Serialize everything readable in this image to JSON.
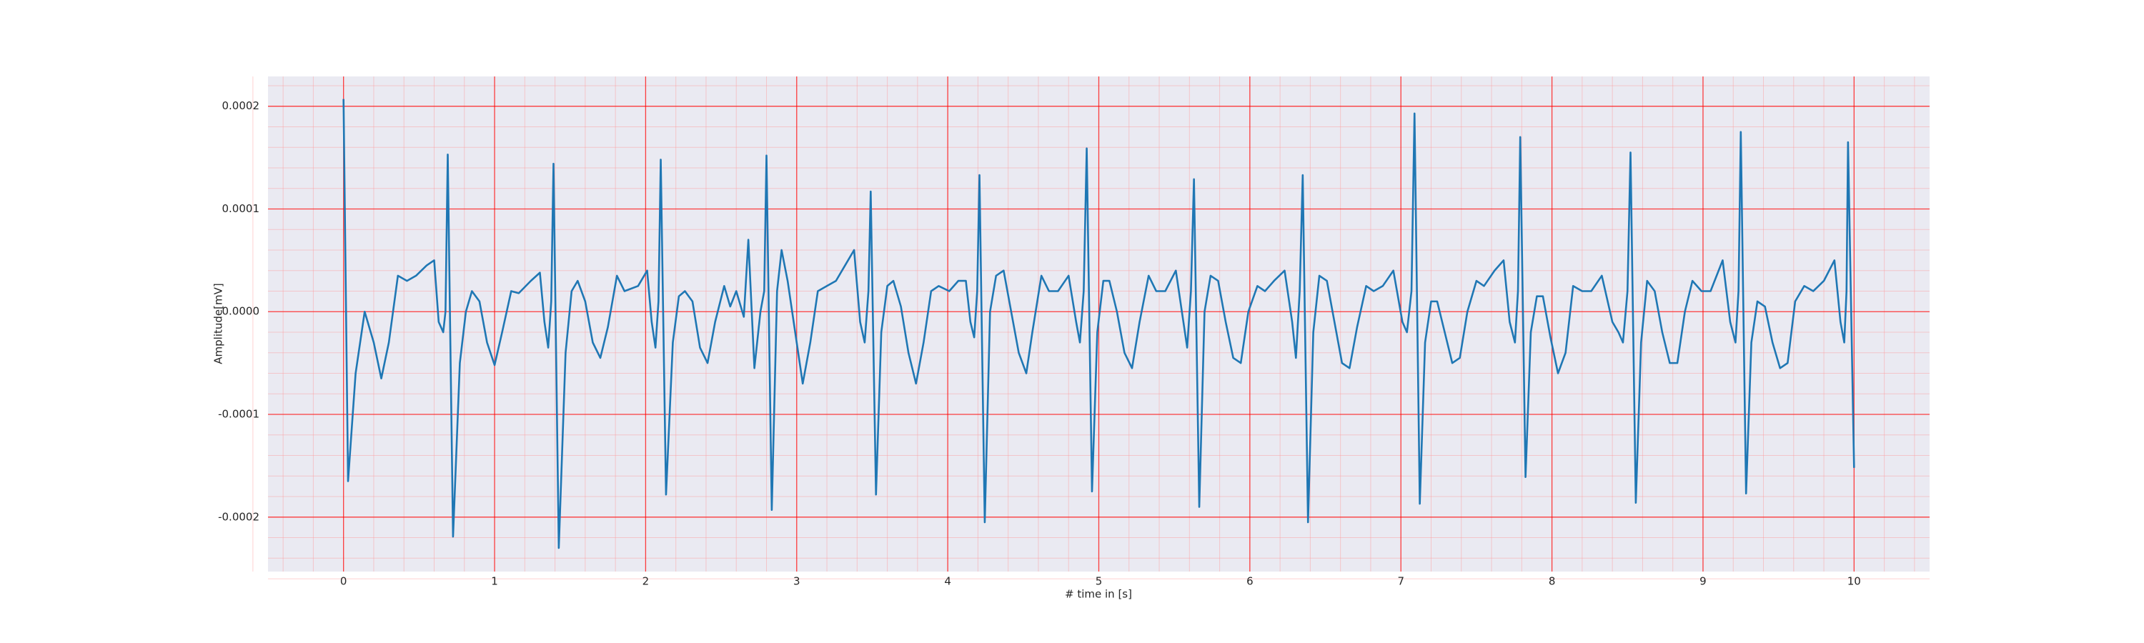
{
  "chart_data": {
    "type": "line",
    "xlabel": "# time in [s]",
    "ylabel": "Amplitude[mV]",
    "color": "#1f77b4",
    "grid": true,
    "minor_grid": true,
    "xlim": [
      -0.5,
      10.5
    ],
    "ylim": [
      -0.000253,
      0.000229
    ],
    "xticks": [
      0,
      1,
      2,
      3,
      4,
      5,
      6,
      7,
      8,
      9,
      10
    ],
    "yticks": [
      {
        "value": -0.0002,
        "label": "-0.0002"
      },
      {
        "value": -0.0001,
        "label": "-0.0001"
      },
      {
        "value": 0,
        "label": "0.0000"
      },
      {
        "value": 0.0001,
        "label": "0.0001"
      },
      {
        "value": 0.0002,
        "label": "0.0002"
      }
    ],
    "x": [
      0,
      0.03,
      0.08,
      0.14,
      0.2,
      0.25,
      0.3,
      0.36,
      0.42,
      0.48,
      0.55,
      0.6,
      0.63,
      0.66,
      0.675,
      0.69,
      0.725,
      0.77,
      0.81,
      0.85,
      0.9,
      0.95,
      1.0,
      1.05,
      1.11,
      1.16,
      1.24,
      1.3,
      1.33,
      1.355,
      1.375,
      1.39,
      1.425,
      1.47,
      1.51,
      1.55,
      1.6,
      1.65,
      1.7,
      1.75,
      1.81,
      1.86,
      1.95,
      2.01,
      2.04,
      2.065,
      2.085,
      2.1,
      2.135,
      2.18,
      2.22,
      2.26,
      2.31,
      2.36,
      2.41,
      2.46,
      2.52,
      2.56,
      2.6,
      2.65,
      2.68,
      2.72,
      2.76,
      2.785,
      2.8,
      2.835,
      2.87,
      2.9,
      2.94,
      2.99,
      3.04,
      3.09,
      3.14,
      3.2,
      3.26,
      3.32,
      3.38,
      3.42,
      3.45,
      3.475,
      3.49,
      3.525,
      3.56,
      3.6,
      3.64,
      3.69,
      3.74,
      3.79,
      3.84,
      3.89,
      3.94,
      4.01,
      4.07,
      4.12,
      4.15,
      4.175,
      4.195,
      4.21,
      4.245,
      4.28,
      4.32,
      4.37,
      4.42,
      4.47,
      4.52,
      4.56,
      4.62,
      4.67,
      4.73,
      4.8,
      4.85,
      4.875,
      4.9,
      4.92,
      4.955,
      4.99,
      5.03,
      5.07,
      5.12,
      5.17,
      5.22,
      5.27,
      5.33,
      5.38,
      5.44,
      5.51,
      5.56,
      5.585,
      5.61,
      5.63,
      5.665,
      5.7,
      5.74,
      5.79,
      5.84,
      5.89,
      5.94,
      5.99,
      6.05,
      6.1,
      6.16,
      6.23,
      6.28,
      6.305,
      6.33,
      6.35,
      6.385,
      6.42,
      6.46,
      6.51,
      6.56,
      6.61,
      6.66,
      6.71,
      6.77,
      6.82,
      6.88,
      6.95,
      7.01,
      7.04,
      7.07,
      7.09,
      7.125,
      7.16,
      7.2,
      7.24,
      7.29,
      7.34,
      7.39,
      7.44,
      7.5,
      7.55,
      7.62,
      7.68,
      7.72,
      7.755,
      7.775,
      7.79,
      7.825,
      7.86,
      7.9,
      7.94,
      7.99,
      8.04,
      8.09,
      8.14,
      8.2,
      8.26,
      8.33,
      8.4,
      8.44,
      8.47,
      8.5,
      8.52,
      8.555,
      8.59,
      8.63,
      8.68,
      8.73,
      8.78,
      8.83,
      8.88,
      8.93,
      8.99,
      9.05,
      9.13,
      9.18,
      9.215,
      9.235,
      9.25,
      9.285,
      9.32,
      9.36,
      9.41,
      9.46,
      9.51,
      9.56,
      9.61,
      9.67,
      9.73,
      9.8,
      9.87,
      9.91,
      9.935,
      9.95,
      9.96,
      10.0
    ],
    "values": [
      0.000207,
      -0.000165,
      -6e-05,
      0.0,
      -3e-05,
      -6.5e-05,
      -3e-05,
      3.5e-05,
      3e-05,
      3.5e-05,
      4.5e-05,
      5e-05,
      -1e-05,
      -2e-05,
      0.0,
      0.000153,
      -0.000219,
      -5e-05,
      0.0,
      2e-05,
      1e-05,
      -3e-05,
      -5.2e-05,
      -2e-05,
      2e-05,
      1.8e-05,
      3e-05,
      3.8e-05,
      -1e-05,
      -3.5e-05,
      1e-05,
      0.000144,
      -0.00023,
      -4e-05,
      2e-05,
      3e-05,
      1e-05,
      -3e-05,
      -4.5e-05,
      -1.5e-05,
      3.5e-05,
      2e-05,
      2.5e-05,
      4e-05,
      -1e-05,
      -3.5e-05,
      1e-05,
      0.000148,
      -0.000178,
      -3e-05,
      1.5e-05,
      2e-05,
      1e-05,
      -3.5e-05,
      -5e-05,
      -1e-05,
      2.5e-05,
      5e-06,
      2e-05,
      -5e-06,
      7e-05,
      -5.5e-05,
      0.0,
      2e-05,
      0.000152,
      -0.000193,
      2e-05,
      6e-05,
      3e-05,
      -2e-05,
      -7e-05,
      -3e-05,
      2e-05,
      2.5e-05,
      3e-05,
      4.5e-05,
      6e-05,
      -1e-05,
      -3e-05,
      2e-05,
      0.000117,
      -0.000178,
      -2e-05,
      2.5e-05,
      3e-05,
      5e-06,
      -4e-05,
      -7e-05,
      -3e-05,
      2e-05,
      2.5e-05,
      2e-05,
      3e-05,
      3e-05,
      -1e-05,
      -2.5e-05,
      2e-05,
      0.000133,
      -0.000205,
      0.0,
      3.5e-05,
      4e-05,
      0.0,
      -4e-05,
      -6e-05,
      -2e-05,
      3.5e-05,
      2e-05,
      2e-05,
      3.5e-05,
      -1e-05,
      -3e-05,
      2e-05,
      0.000159,
      -0.000175,
      -2e-05,
      3e-05,
      3e-05,
      0.0,
      -4e-05,
      -5.5e-05,
      -1e-05,
      3.5e-05,
      2e-05,
      2e-05,
      4e-05,
      -1e-05,
      -3.5e-05,
      2e-05,
      0.000129,
      -0.00019,
      0.0,
      3.5e-05,
      3e-05,
      -1e-05,
      -4.5e-05,
      -5e-05,
      0.0,
      2.5e-05,
      2e-05,
      3e-05,
      4e-05,
      -1e-05,
      -4.5e-05,
      2e-05,
      0.000133,
      -0.000205,
      -2e-05,
      3.5e-05,
      3e-05,
      -1e-05,
      -5e-05,
      -5.5e-05,
      -1.5e-05,
      2.5e-05,
      2e-05,
      2.5e-05,
      4e-05,
      -1e-05,
      -2e-05,
      2e-05,
      0.000193,
      -0.000187,
      -3e-05,
      1e-05,
      1e-05,
      -2e-05,
      -5e-05,
      -4.5e-05,
      0.0,
      3e-05,
      2.5e-05,
      4e-05,
      5e-05,
      -1e-05,
      -3e-05,
      2e-05,
      0.00017,
      -0.000161,
      -2e-05,
      1.5e-05,
      1.5e-05,
      -2.5e-05,
      -6e-05,
      -4e-05,
      2.5e-05,
      2e-05,
      2e-05,
      3.5e-05,
      -1e-05,
      -2e-05,
      -3e-05,
      2e-05,
      0.000155,
      -0.000186,
      -3e-05,
      3e-05,
      2e-05,
      -2e-05,
      -5e-05,
      -5e-05,
      0.0,
      3e-05,
      2e-05,
      2e-05,
      5e-05,
      -1e-05,
      -3e-05,
      2e-05,
      0.000175,
      -0.000177,
      -3e-05,
      1e-05,
      5e-06,
      -3e-05,
      -5.5e-05,
      -5e-05,
      1e-05,
      2.5e-05,
      2e-05,
      3e-05,
      5e-05,
      -1e-05,
      -3e-05,
      2e-05,
      0.000165,
      -0.000152
    ]
  }
}
